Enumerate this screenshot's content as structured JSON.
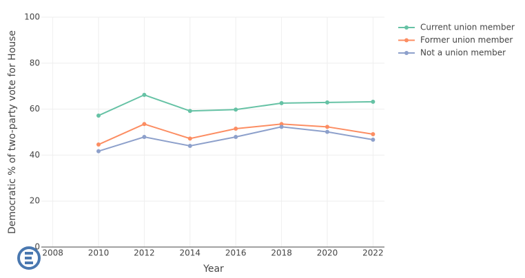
{
  "chart_data": {
    "type": "line",
    "x_label": "Year",
    "y_label": "Democratic % of two-party vote for House",
    "x": [
      2010,
      2012,
      2014,
      2016,
      2018,
      2020,
      2022
    ],
    "series": [
      {
        "name": "Current union member",
        "color": "#66c2a5",
        "values": [
          57.2,
          66.2,
          59.2,
          59.8,
          62.6,
          62.9,
          63.2
        ]
      },
      {
        "name": "Former union member",
        "color": "#fc8d62",
        "values": [
          44.6,
          53.5,
          47.2,
          51.5,
          53.5,
          52.3,
          49.1
        ]
      },
      {
        "name": "Not a union member",
        "color": "#8da0cb",
        "values": [
          41.7,
          47.9,
          44.0,
          47.9,
          52.3,
          50.1,
          46.7
        ]
      }
    ],
    "xlim": [
      2007.5,
      2022.5
    ],
    "xticks": [
      2008,
      2010,
      2012,
      2014,
      2016,
      2018,
      2020,
      2022
    ],
    "ylim": [
      0,
      100
    ],
    "yticks": [
      0,
      20,
      40,
      60,
      80,
      100
    ],
    "grid": true,
    "legend": "top-right"
  }
}
